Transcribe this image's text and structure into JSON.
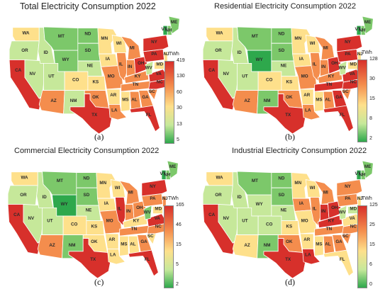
{
  "colors": {
    "high": "#d7302b",
    "mid_high": "#f48d4d",
    "mid": "#fee08b",
    "mid_low": "#c6e89a",
    "low": "#7cc86a",
    "lowest": "#2ea84c",
    "border": "#ffffff"
  },
  "panels": [
    {
      "title": "Total Electricity Consumption 2022",
      "tag": "(a)",
      "legend_unit": "TWh",
      "legend_ticks": [
        "419",
        "130",
        "60",
        "30",
        "13",
        "5"
      ],
      "states": {
        "WA": "mid",
        "OR": "mid_low",
        "CA": "high",
        "NV": "mid_low",
        "ID": "mid_low",
        "MT": "low",
        "WY": "low",
        "UT": "mid_low",
        "AZ": "mid_high",
        "CO": "mid",
        "NM": "mid_low",
        "ND": "low",
        "SD": "low",
        "NE": "mid_low",
        "KS": "mid",
        "OK": "mid_high",
        "TX": "high",
        "MN": "mid",
        "IA": "mid",
        "MO": "mid_high",
        "AR": "mid",
        "LA": "mid_high",
        "WI": "mid",
        "IL": "mid_high",
        "MI": "mid_high",
        "IN": "mid_high",
        "OH": "high",
        "KY": "mid_high",
        "TN": "mid_high",
        "MS": "mid",
        "AL": "mid_high",
        "GA": "mid_high",
        "FL": "high",
        "SC": "mid_high",
        "NC": "high",
        "VA": "high",
        "WV": "mid_low",
        "PA": "high",
        "NY": "high",
        "VT": "lowest",
        "NH": "low",
        "ME": "low",
        "NJ": "mid",
        "MD": "mid"
      }
    },
    {
      "title": "Residential Electricity Consumption 2022",
      "tag": "(b)",
      "legend_unit": "TWh",
      "legend_ticks": [
        "128",
        "30",
        "15",
        "8",
        "2"
      ],
      "states": {
        "WA": "mid",
        "OR": "mid_low",
        "CA": "high",
        "NV": "mid_low",
        "ID": "mid_low",
        "MT": "low",
        "WY": "lowest",
        "UT": "mid_low",
        "AZ": "mid_high",
        "CO": "mid",
        "NM": "low",
        "ND": "low",
        "SD": "low",
        "NE": "mid_low",
        "KS": "mid",
        "OK": "mid_high",
        "TX": "high",
        "MN": "mid",
        "IA": "mid",
        "MO": "mid_high",
        "AR": "mid",
        "LA": "mid_high",
        "WI": "mid",
        "IL": "mid_high",
        "MI": "mid_high",
        "IN": "mid_high",
        "OH": "high",
        "KY": "mid_high",
        "TN": "high",
        "MS": "mid",
        "AL": "mid_high",
        "GA": "high",
        "FL": "high",
        "SC": "mid_high",
        "NC": "high",
        "VA": "high",
        "WV": "mid_low",
        "PA": "high",
        "NY": "high",
        "VT": "lowest",
        "NH": "low",
        "ME": "low",
        "NJ": "mid",
        "MD": "mid"
      }
    },
    {
      "title": "Commercial Electricity Consumption 2022",
      "tag": "(c)",
      "legend_unit": "TWh",
      "legend_ticks": [
        "165",
        "46",
        "15",
        "5",
        "2"
      ],
      "states": {
        "WA": "mid",
        "OR": "mid_low",
        "CA": "high",
        "NV": "mid_low",
        "ID": "mid_low",
        "MT": "low",
        "WY": "lowest",
        "UT": "mid_low",
        "AZ": "mid_high",
        "CO": "mid",
        "NM": "low",
        "ND": "low",
        "SD": "low",
        "NE": "mid_low",
        "KS": "mid",
        "OK": "mid",
        "TX": "high",
        "MN": "mid",
        "IA": "mid",
        "MO": "mid_high",
        "AR": "mid",
        "LA": "mid",
        "WI": "mid",
        "IL": "high",
        "MI": "mid_high",
        "IN": "mid_high",
        "OH": "mid_high",
        "KY": "mid",
        "TN": "mid_high",
        "MS": "mid",
        "AL": "mid",
        "GA": "mid_high",
        "FL": "high",
        "SC": "mid",
        "NC": "mid_high",
        "VA": "high",
        "WV": "low",
        "PA": "mid_high",
        "NY": "high",
        "VT": "lowest",
        "NH": "low",
        "ME": "low",
        "NJ": "mid_high",
        "MD": "mid"
      }
    },
    {
      "title": "Industrial Electricity Consumption 2022",
      "tag": "(d)",
      "legend_unit": "TWh",
      "legend_ticks": [
        "125",
        "25",
        "15",
        "6",
        "0"
      ],
      "states": {
        "WA": "mid",
        "OR": "mid_low",
        "CA": "high",
        "NV": "mid_low",
        "ID": "mid_low",
        "MT": "low",
        "WY": "mid_low",
        "UT": "mid_low",
        "AZ": "mid",
        "CO": "mid_low",
        "NM": "low",
        "ND": "low",
        "SD": "low",
        "NE": "mid_low",
        "KS": "mid",
        "OK": "mid_high",
        "TX": "high",
        "MN": "mid",
        "IA": "mid_high",
        "MO": "mid",
        "AR": "mid",
        "LA": "high",
        "WI": "mid",
        "IL": "mid_high",
        "MI": "mid_high",
        "IN": "high",
        "OH": "high",
        "KY": "high",
        "TN": "mid_high",
        "MS": "mid",
        "AL": "mid_high",
        "GA": "mid_high",
        "FL": "mid",
        "SC": "mid_high",
        "NC": "mid_high",
        "VA": "mid",
        "WV": "mid_low",
        "PA": "mid_high",
        "NY": "mid_high",
        "VT": "lowest",
        "NH": "low",
        "ME": "low",
        "NJ": "mid",
        "MD": "mid_low"
      }
    }
  ]
}
